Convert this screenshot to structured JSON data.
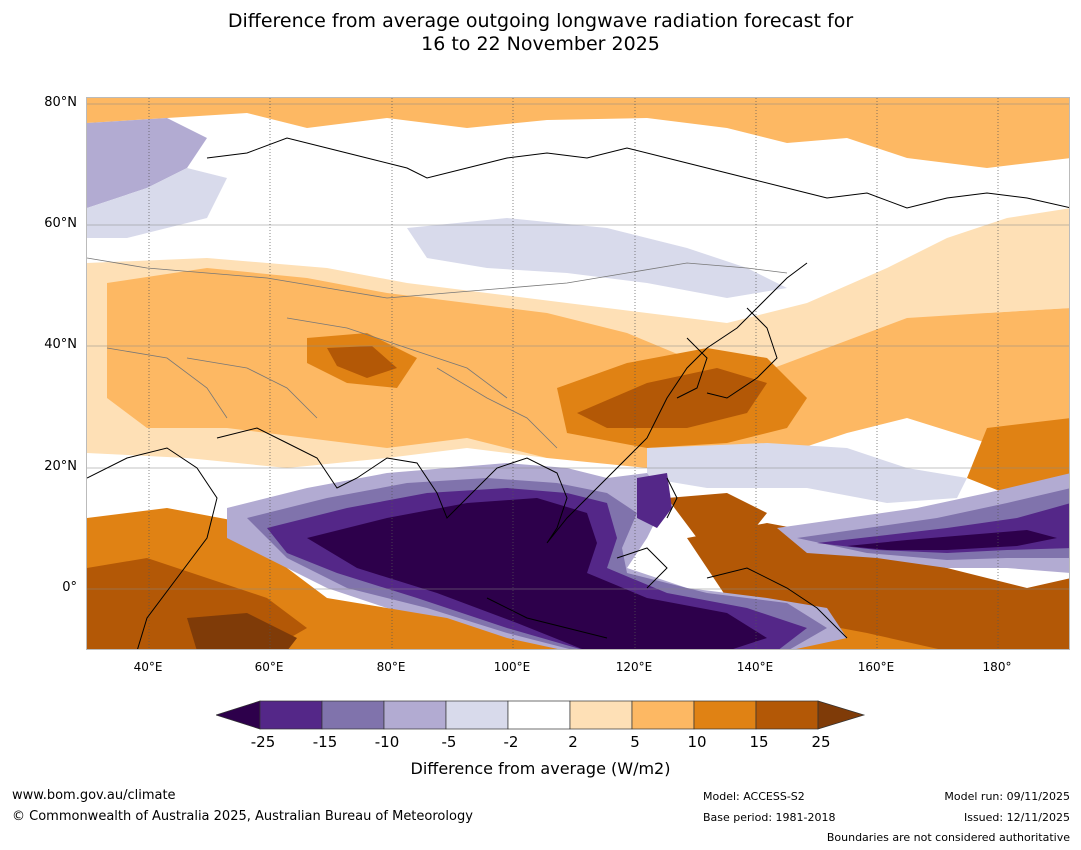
{
  "title": {
    "line1": "Difference from average outgoing longwave radiation forecast for",
    "line2": "16 to 22 November 2025"
  },
  "map": {
    "lat_labels": [
      "80°N",
      "60°N",
      "40°N",
      "20°N",
      "0°"
    ],
    "lon_labels": [
      "40°E",
      "60°E",
      "80°E",
      "100°E",
      "120°E",
      "140°E",
      "160°E",
      "180°"
    ]
  },
  "colorbar": {
    "colors": {
      "lt_minus25": "#2d004b",
      "m25_m15": "#542788",
      "m15_m10": "#8073ac",
      "m10_m5": "#b2abd2",
      "m5_m2": "#d8daeb",
      "m2_2": "#ffffff",
      "p2_5": "#fee0b6",
      "p5_10": "#fdb863",
      "p10_15": "#e08214",
      "p15_25": "#b35806",
      "gt_25": "#7f3b08"
    },
    "ticks": [
      "-25",
      "-15",
      "-10",
      "-5",
      "-2",
      "2",
      "5",
      "10",
      "15",
      "25"
    ],
    "label": "Difference from average (W/m2)"
  },
  "footer": {
    "website": "www.bom.gov.au/climate",
    "copyright": "© Commonwealth of Australia 2025, Australian Bureau of Meteorology",
    "model": "Model: ACCESS-S2",
    "base_period": "Base period: 1981-2018",
    "model_run": "Model run: 09/11/2025",
    "issued": "Issued: 12/11/2025",
    "boundaries": "Boundaries are not considered authoritative"
  }
}
